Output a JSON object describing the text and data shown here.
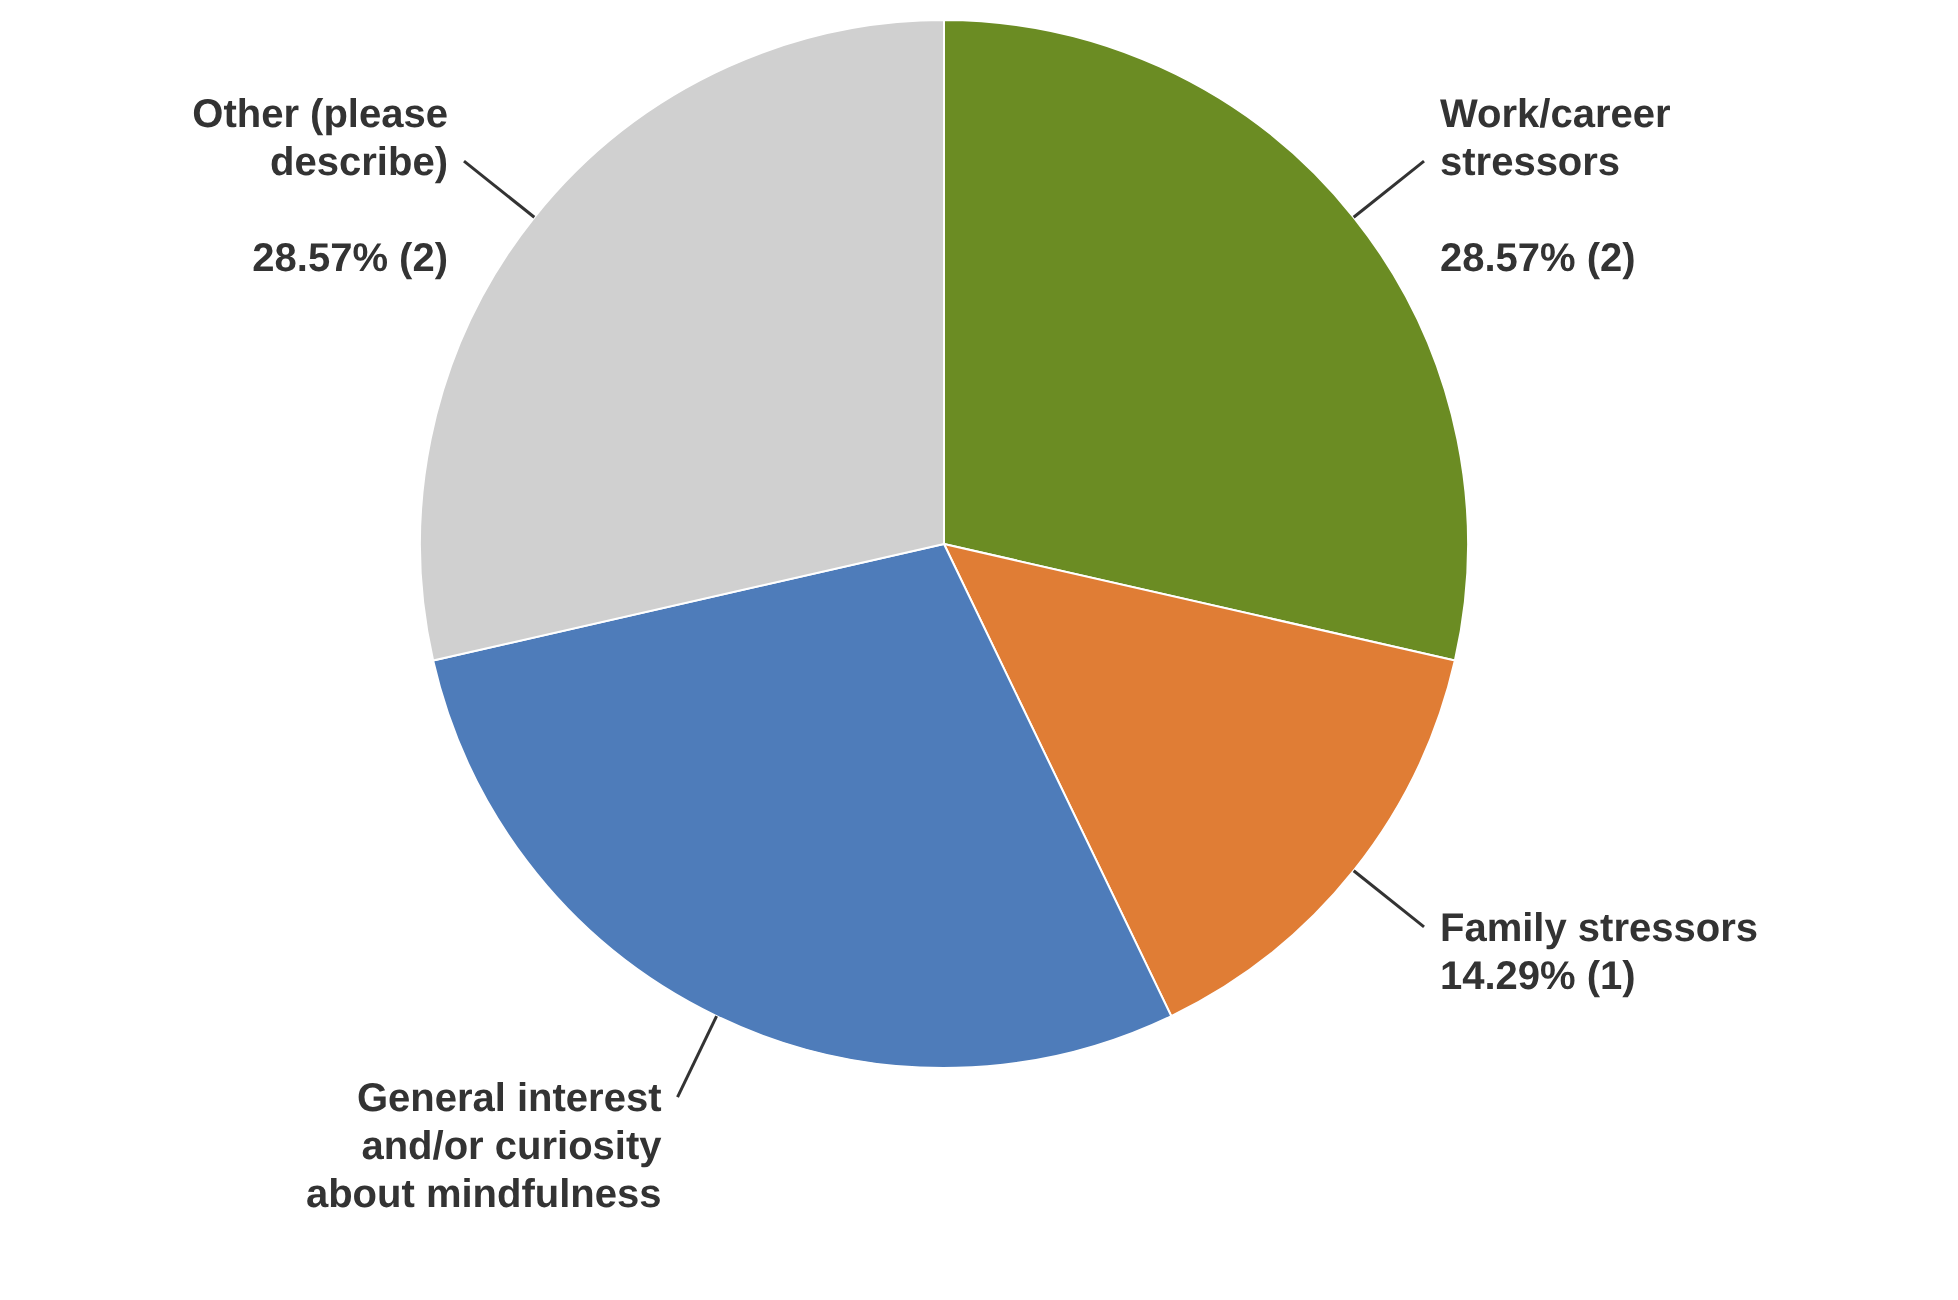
{
  "chart_data": {
    "type": "pie",
    "categories": [
      "Work/career stressors",
      "Family stressors",
      "General interest and/or curiosity about mindfulness",
      "Other (please describe)"
    ],
    "values": [
      28.57,
      14.29,
      28.57,
      28.57
    ],
    "colors": [
      "#6b8c23",
      "#e07d35",
      "#4e7cba",
      "#d0d0d0"
    ],
    "value_labels": [
      "28.57% (2)",
      "14.29% (1)",
      null,
      "28.57% (2)"
    ]
  }
}
